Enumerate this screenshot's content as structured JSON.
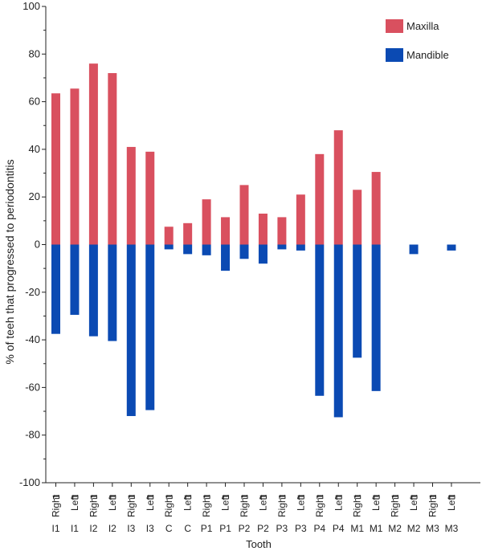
{
  "chart_data": {
    "type": "bar",
    "title": "",
    "xlabel": "Tooth",
    "ylabel": "% of teeh that progressed to periodontitis",
    "ylim": [
      -100,
      100
    ],
    "yticks": [
      -100,
      -80,
      -60,
      -40,
      -20,
      0,
      20,
      40,
      60,
      80,
      100
    ],
    "legend_position": "top-right",
    "grid": false,
    "categories": [
      {
        "tooth": "I1",
        "side": "Right"
      },
      {
        "tooth": "I1",
        "side": "Left"
      },
      {
        "tooth": "I2",
        "side": "Right"
      },
      {
        "tooth": "I2",
        "side": "Left"
      },
      {
        "tooth": "I3",
        "side": "Right"
      },
      {
        "tooth": "I3",
        "side": "Left"
      },
      {
        "tooth": "C",
        "side": "Right"
      },
      {
        "tooth": "C",
        "side": "Left"
      },
      {
        "tooth": "P1",
        "side": "Right"
      },
      {
        "tooth": "P1",
        "side": "Left"
      },
      {
        "tooth": "P2",
        "side": "Right"
      },
      {
        "tooth": "P2",
        "side": "Left"
      },
      {
        "tooth": "P3",
        "side": "Right"
      },
      {
        "tooth": "P3",
        "side": "Left"
      },
      {
        "tooth": "P4",
        "side": "Right"
      },
      {
        "tooth": "P4",
        "side": "Left"
      },
      {
        "tooth": "M1",
        "side": "Right"
      },
      {
        "tooth": "M1",
        "side": "Left"
      },
      {
        "tooth": "M2",
        "side": "Right"
      },
      {
        "tooth": "M2",
        "side": "Left"
      },
      {
        "tooth": "M3",
        "side": "Right"
      },
      {
        "tooth": "M3",
        "side": "Left"
      }
    ],
    "series": [
      {
        "name": "Maxilla",
        "color": "#d9505f",
        "values": [
          63.5,
          65.5,
          76,
          72,
          41,
          39,
          7.5,
          9,
          19,
          11.5,
          25,
          13,
          11.5,
          21,
          38,
          48,
          23,
          30.5,
          0,
          0,
          0,
          0
        ]
      },
      {
        "name": "Mandible",
        "color": "#0b4ab3",
        "values": [
          -37.5,
          -29.5,
          -38.5,
          -40.5,
          -72,
          -69.5,
          -2,
          -4,
          -4.5,
          -11,
          -6,
          -8,
          -2,
          -2.5,
          -63.5,
          -72.5,
          -47.5,
          -61.5,
          0,
          -4,
          0,
          -2.5
        ]
      }
    ]
  }
}
